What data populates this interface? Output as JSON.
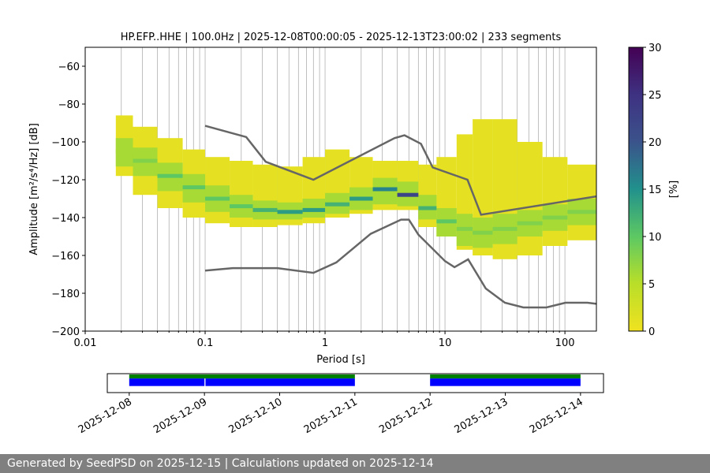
{
  "chart_data": {
    "type": "ppsd",
    "title": "HP.EFP..HHE | 100.0Hz | 2025-12-08T00:00:05 - 2025-12-13T23:00:02 | 233 segments",
    "x_label": "Period [s]",
    "y_label": "Amplitude [m²/s⁴/Hz] [dB]",
    "xscale": "log",
    "xlim": [
      0.01,
      183
    ],
    "ylim": [
      -200,
      -50
    ],
    "xticks": [
      0.01,
      0.1,
      1,
      10,
      100
    ],
    "xminorticks": [
      0.02,
      0.03,
      0.04,
      0.05,
      0.06,
      0.07,
      0.08,
      0.09,
      0.2,
      0.3,
      0.4,
      0.5,
      0.6,
      0.7,
      0.8,
      0.9,
      2,
      3,
      4,
      5,
      6,
      7,
      8,
      9,
      20,
      30,
      40,
      50,
      60,
      70,
      80,
      90
    ],
    "yticks": [
      {
        "value": -200,
        "label": "−200"
      },
      {
        "value": -180,
        "label": "−180"
      },
      {
        "value": -160,
        "label": "−160"
      },
      {
        "value": -140,
        "label": "−140"
      },
      {
        "value": -120,
        "label": "−120"
      },
      {
        "value": -100,
        "label": "−100"
      },
      {
        "value": -80,
        "label": "−80"
      },
      {
        "value": -60,
        "label": "−60"
      }
    ],
    "grid": true,
    "pdf": {
      "period_bins": [
        0.018,
        0.025,
        0.04,
        0.065,
        0.1,
        0.16,
        0.25,
        0.4,
        0.65,
        1,
        1.6,
        2.5,
        4,
        6,
        8.5,
        12.5,
        17,
        25,
        40,
        65,
        105,
        183
      ],
      "outer": {
        "percent": 1,
        "low": [
          -118,
          -128,
          -135,
          -140,
          -143,
          -145,
          -145,
          -144,
          -143,
          -140,
          -138,
          -136,
          -136,
          -145,
          -150,
          -157,
          -160,
          -162,
          -160,
          -155,
          -152
        ],
        "high": [
          -86,
          -92,
          -98,
          -104,
          -108,
          -110,
          -112,
          -113,
          -108,
          -104,
          -108,
          -110,
          -110,
          -112,
          -108,
          -96,
          -88,
          -88,
          -100,
          -108,
          -112
        ]
      },
      "inner": {
        "percent": 6,
        "low": [
          -113,
          -118,
          -126,
          -132,
          -137,
          -140,
          -141,
          -141,
          -140,
          -138,
          -136,
          -133,
          -134,
          -141,
          -150,
          -155,
          -156,
          -154,
          -150,
          -147,
          -144
        ],
        "high": [
          -98,
          -103,
          -111,
          -117,
          -123,
          -128,
          -131,
          -132,
          -130,
          -127,
          -124,
          -119,
          -121,
          -128,
          -135,
          -138,
          -140,
          -138,
          -136,
          -133,
          -130
        ]
      },
      "mode": {
        "values": [
          -105,
          -110,
          -118,
          -124,
          -130,
          -134,
          -136,
          -137,
          -136,
          -133,
          -130,
          -125,
          -128,
          -135,
          -142,
          -146,
          -148,
          -146,
          -143,
          -140,
          -137
        ],
        "percent": [
          6,
          8,
          10,
          10,
          10,
          10,
          12,
          14,
          14,
          12,
          14,
          16,
          22,
          12,
          10,
          8,
          8,
          8,
          8,
          8,
          8
        ]
      }
    },
    "series": [
      {
        "color": "#666666",
        "x": [
          0.1,
          0.22,
          0.32,
          0.8,
          3.8,
          4.6,
          6.3,
          7.9,
          15.4,
          20,
          183
        ],
        "values": [
          -91.5,
          -97.4,
          -110.5,
          -120,
          -98,
          -96.5,
          -101,
          -113.5,
          -120,
          -138.5,
          -128.8
        ]
      },
      {
        "color": "#666666",
        "x": [
          0.1,
          0.17,
          0.4,
          0.8,
          1.24,
          2.4,
          4.3,
          5,
          6,
          10,
          12,
          15.6,
          21.9,
          31.6,
          45,
          70,
          101,
          154,
          183
        ],
        "values": [
          -168,
          -166.7,
          -166.7,
          -169.2,
          -163.7,
          -148.6,
          -141.1,
          -141.1,
          -149,
          -163,
          -166.2,
          -162.1,
          -177.5,
          -185,
          -187.5,
          -187.5,
          -185,
          -185,
          -185.6
        ]
      }
    ],
    "colorbar": {
      "label": "[%]",
      "lim": [
        0,
        30
      ],
      "ticks": [
        0,
        5,
        10,
        15,
        20,
        25,
        30
      ]
    },
    "timeline": {
      "xlim": [
        "2025-12-07T17:00",
        "2025-12-14T07:20"
      ],
      "xticks": [
        "2025-12-08",
        "2025-12-09",
        "2025-12-10",
        "2025-12-11",
        "2025-12-12",
        "2025-12-13",
        "2025-12-14"
      ],
      "rows": [
        {
          "color": "#008000",
          "start": [
            "2025-12-08",
            "2025-12-12"
          ],
          "end": [
            "2025-12-11",
            "2025-12-14"
          ]
        },
        {
          "color": "#0000ff",
          "start": [
            "2025-12-08",
            "2025-12-09T00:20",
            "2025-12-12"
          ],
          "end": [
            "2025-12-09",
            "2025-12-11",
            "2025-12-14"
          ]
        }
      ]
    },
    "footer": "Generated by SeedPSD on 2025-12-15 | Calculations updated on 2025-12-14"
  }
}
